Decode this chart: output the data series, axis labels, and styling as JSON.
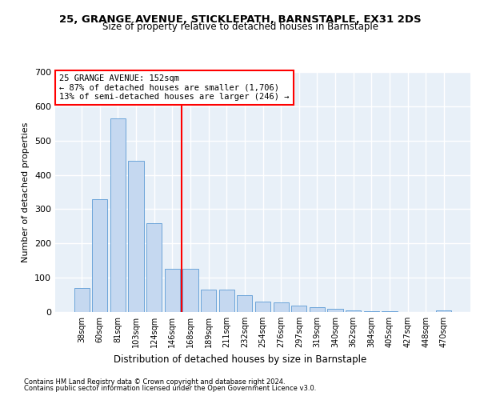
{
  "title": "25, GRANGE AVENUE, STICKLEPATH, BARNSTAPLE, EX31 2DS",
  "subtitle": "Size of property relative to detached houses in Barnstaple",
  "xlabel": "Distribution of detached houses by size in Barnstaple",
  "ylabel": "Number of detached properties",
  "bar_color": "#c5d8f0",
  "bar_edge_color": "#5b9bd5",
  "bg_color": "#e8f0f8",
  "grid_color": "#ffffff",
  "categories": [
    "38sqm",
    "60sqm",
    "81sqm",
    "103sqm",
    "124sqm",
    "146sqm",
    "168sqm",
    "189sqm",
    "211sqm",
    "232sqm",
    "254sqm",
    "276sqm",
    "297sqm",
    "319sqm",
    "340sqm",
    "362sqm",
    "384sqm",
    "405sqm",
    "427sqm",
    "448sqm",
    "470sqm"
  ],
  "values": [
    70,
    330,
    565,
    440,
    260,
    125,
    125,
    65,
    65,
    50,
    30,
    28,
    18,
    14,
    10,
    5,
    3,
    2,
    1,
    1,
    5
  ],
  "ylim": [
    0,
    700
  ],
  "yticks": [
    0,
    100,
    200,
    300,
    400,
    500,
    600,
    700
  ],
  "red_line_x": 5.5,
  "annotation_title": "25 GRANGE AVENUE: 152sqm",
  "annotation_line1": "← 87% of detached houses are smaller (1,706)",
  "annotation_line2": "13% of semi-detached houses are larger (246) →",
  "footer1": "Contains HM Land Registry data © Crown copyright and database right 2024.",
  "footer2": "Contains public sector information licensed under the Open Government Licence v3.0."
}
